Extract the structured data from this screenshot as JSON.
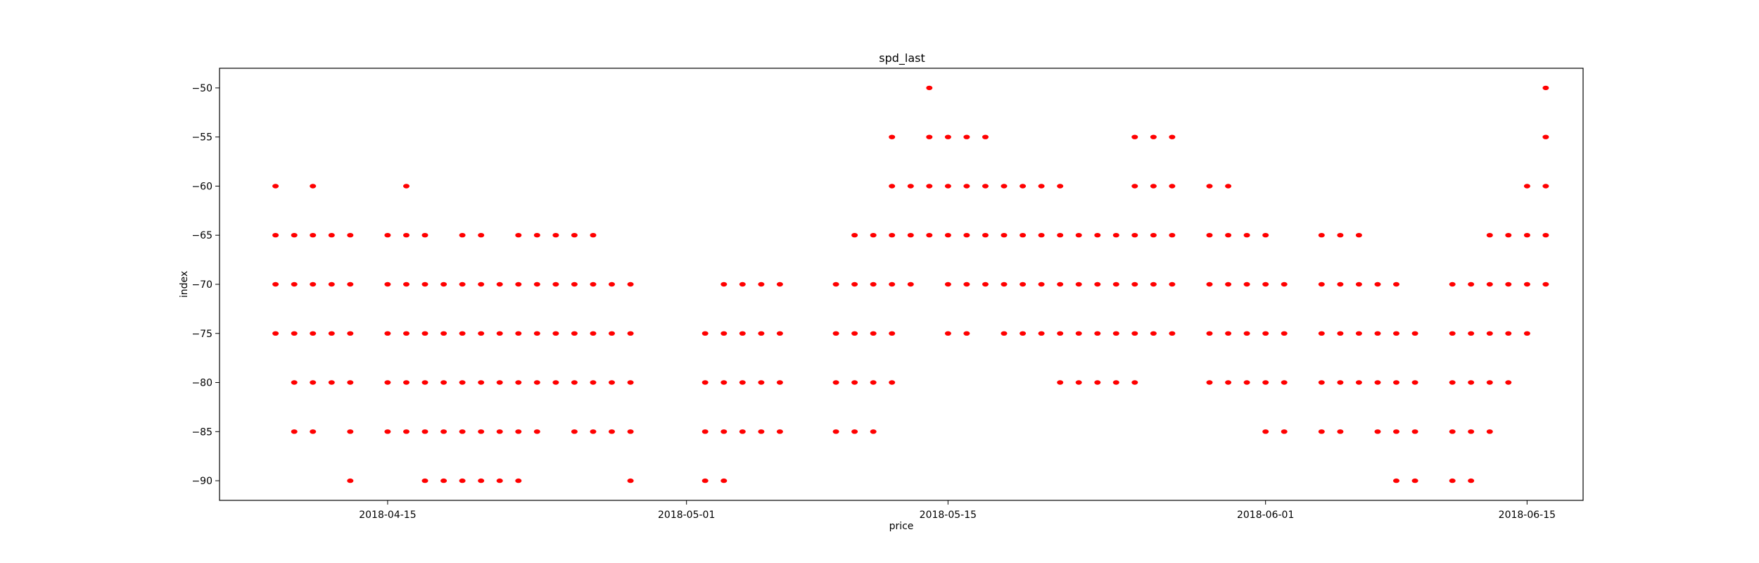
{
  "chart_data": {
    "type": "scatter",
    "title": "spd_last",
    "xlabel": "price",
    "ylabel": "index",
    "x_is_date": true,
    "xlim": [
      "2018-04-06",
      "2018-06-18"
    ],
    "ylim": [
      -92,
      -48
    ],
    "x_ticks": [
      "2018-04-15",
      "2018-05-01",
      "2018-05-15",
      "2018-06-01",
      "2018-06-15"
    ],
    "y_ticks": [
      -50,
      -55,
      -60,
      -65,
      -70,
      -75,
      -80,
      -85,
      -90
    ],
    "grid": false,
    "legend": "none",
    "marker_color": "#ff0000",
    "series": [
      {
        "points": [
          [
            "2018-04-09",
            -60
          ],
          [
            "2018-04-11",
            -60
          ],
          [
            "2018-04-09",
            -65
          ],
          [
            "2018-04-10",
            -65
          ],
          [
            "2018-04-11",
            -65
          ],
          [
            "2018-04-12",
            -65
          ],
          [
            "2018-04-13",
            -65
          ],
          [
            "2018-04-09",
            -70
          ],
          [
            "2018-04-10",
            -70
          ],
          [
            "2018-04-11",
            -70
          ],
          [
            "2018-04-12",
            -70
          ],
          [
            "2018-04-13",
            -70
          ],
          [
            "2018-04-09",
            -75
          ],
          [
            "2018-04-10",
            -75
          ],
          [
            "2018-04-11",
            -75
          ],
          [
            "2018-04-12",
            -75
          ],
          [
            "2018-04-13",
            -75
          ],
          [
            "2018-04-10",
            -80
          ],
          [
            "2018-04-11",
            -80
          ],
          [
            "2018-04-12",
            -80
          ],
          [
            "2018-04-13",
            -80
          ],
          [
            "2018-04-10",
            -85
          ],
          [
            "2018-04-11",
            -85
          ],
          [
            "2018-04-13",
            -85
          ],
          [
            "2018-04-13",
            -90
          ],
          [
            "2018-04-16",
            -60
          ],
          [
            "2018-04-15",
            -65
          ],
          [
            "2018-04-16",
            -65
          ],
          [
            "2018-04-17",
            -65
          ],
          [
            "2018-04-19",
            -65
          ],
          [
            "2018-04-20",
            -65
          ],
          [
            "2018-04-15",
            -70
          ],
          [
            "2018-04-16",
            -70
          ],
          [
            "2018-04-17",
            -70
          ],
          [
            "2018-04-18",
            -70
          ],
          [
            "2018-04-19",
            -70
          ],
          [
            "2018-04-20",
            -70
          ],
          [
            "2018-04-21",
            -70
          ],
          [
            "2018-04-15",
            -75
          ],
          [
            "2018-04-16",
            -75
          ],
          [
            "2018-04-17",
            -75
          ],
          [
            "2018-04-18",
            -75
          ],
          [
            "2018-04-19",
            -75
          ],
          [
            "2018-04-20",
            -75
          ],
          [
            "2018-04-21",
            -75
          ],
          [
            "2018-04-15",
            -80
          ],
          [
            "2018-04-16",
            -80
          ],
          [
            "2018-04-17",
            -80
          ],
          [
            "2018-04-18",
            -80
          ],
          [
            "2018-04-19",
            -80
          ],
          [
            "2018-04-20",
            -80
          ],
          [
            "2018-04-21",
            -80
          ],
          [
            "2018-04-15",
            -85
          ],
          [
            "2018-04-16",
            -85
          ],
          [
            "2018-04-17",
            -85
          ],
          [
            "2018-04-18",
            -85
          ],
          [
            "2018-04-19",
            -85
          ],
          [
            "2018-04-20",
            -85
          ],
          [
            "2018-04-21",
            -85
          ],
          [
            "2018-04-17",
            -90
          ],
          [
            "2018-04-18",
            -90
          ],
          [
            "2018-04-19",
            -90
          ],
          [
            "2018-04-20",
            -90
          ],
          [
            "2018-04-21",
            -90
          ],
          [
            "2018-04-22",
            -65
          ],
          [
            "2018-04-23",
            -65
          ],
          [
            "2018-04-24",
            -65
          ],
          [
            "2018-04-25",
            -65
          ],
          [
            "2018-04-26",
            -65
          ],
          [
            "2018-04-22",
            -70
          ],
          [
            "2018-04-23",
            -70
          ],
          [
            "2018-04-24",
            -70
          ],
          [
            "2018-04-25",
            -70
          ],
          [
            "2018-04-26",
            -70
          ],
          [
            "2018-04-27",
            -70
          ],
          [
            "2018-04-28",
            -70
          ],
          [
            "2018-04-22",
            -75
          ],
          [
            "2018-04-23",
            -75
          ],
          [
            "2018-04-24",
            -75
          ],
          [
            "2018-04-25",
            -75
          ],
          [
            "2018-04-26",
            -75
          ],
          [
            "2018-04-27",
            -75
          ],
          [
            "2018-04-28",
            -75
          ],
          [
            "2018-04-22",
            -80
          ],
          [
            "2018-04-23",
            -80
          ],
          [
            "2018-04-24",
            -80
          ],
          [
            "2018-04-25",
            -80
          ],
          [
            "2018-04-26",
            -80
          ],
          [
            "2018-04-27",
            -80
          ],
          [
            "2018-04-28",
            -80
          ],
          [
            "2018-04-22",
            -85
          ],
          [
            "2018-04-23",
            -85
          ],
          [
            "2018-04-25",
            -85
          ],
          [
            "2018-04-26",
            -85
          ],
          [
            "2018-04-27",
            -85
          ],
          [
            "2018-04-28",
            -85
          ],
          [
            "2018-04-22",
            -90
          ],
          [
            "2018-04-28",
            -90
          ],
          [
            "2018-05-03",
            -70
          ],
          [
            "2018-05-04",
            -70
          ],
          [
            "2018-05-05",
            -70
          ],
          [
            "2018-05-06",
            -70
          ],
          [
            "2018-05-02",
            -75
          ],
          [
            "2018-05-03",
            -75
          ],
          [
            "2018-05-04",
            -75
          ],
          [
            "2018-05-05",
            -75
          ],
          [
            "2018-05-06",
            -75
          ],
          [
            "2018-05-02",
            -80
          ],
          [
            "2018-05-03",
            -80
          ],
          [
            "2018-05-04",
            -80
          ],
          [
            "2018-05-05",
            -80
          ],
          [
            "2018-05-06",
            -80
          ],
          [
            "2018-05-02",
            -85
          ],
          [
            "2018-05-03",
            -85
          ],
          [
            "2018-05-04",
            -85
          ],
          [
            "2018-05-05",
            -85
          ],
          [
            "2018-05-06",
            -85
          ],
          [
            "2018-05-02",
            -90
          ],
          [
            "2018-05-03",
            -90
          ],
          [
            "2018-05-09",
            -70
          ],
          [
            "2018-05-10",
            -70
          ],
          [
            "2018-05-11",
            -70
          ],
          [
            "2018-05-12",
            -70
          ],
          [
            "2018-05-13",
            -70
          ],
          [
            "2018-05-09",
            -75
          ],
          [
            "2018-05-10",
            -75
          ],
          [
            "2018-05-11",
            -75
          ],
          [
            "2018-05-12",
            -75
          ],
          [
            "2018-05-09",
            -80
          ],
          [
            "2018-05-10",
            -80
          ],
          [
            "2018-05-11",
            -80
          ],
          [
            "2018-05-12",
            -80
          ],
          [
            "2018-05-09",
            -85
          ],
          [
            "2018-05-10",
            -85
          ],
          [
            "2018-05-11",
            -85
          ],
          [
            "2018-05-10",
            -65
          ],
          [
            "2018-05-11",
            -65
          ],
          [
            "2018-05-12",
            -65
          ],
          [
            "2018-05-13",
            -65
          ],
          [
            "2018-05-14",
            -65
          ],
          [
            "2018-05-12",
            -60
          ],
          [
            "2018-05-13",
            -60
          ],
          [
            "2018-05-14",
            -60
          ],
          [
            "2018-05-12",
            -55
          ],
          [
            "2018-05-14",
            -55
          ],
          [
            "2018-05-14",
            -50
          ],
          [
            "2018-05-15",
            -55
          ],
          [
            "2018-05-16",
            -55
          ],
          [
            "2018-05-17",
            -55
          ],
          [
            "2018-05-15",
            -60
          ],
          [
            "2018-05-16",
            -60
          ],
          [
            "2018-05-17",
            -60
          ],
          [
            "2018-05-18",
            -60
          ],
          [
            "2018-05-19",
            -60
          ],
          [
            "2018-05-20",
            -60
          ],
          [
            "2018-05-21",
            -60
          ],
          [
            "2018-05-15",
            -65
          ],
          [
            "2018-05-16",
            -65
          ],
          [
            "2018-05-17",
            -65
          ],
          [
            "2018-05-18",
            -65
          ],
          [
            "2018-05-19",
            -65
          ],
          [
            "2018-05-20",
            -65
          ],
          [
            "2018-05-21",
            -65
          ],
          [
            "2018-05-15",
            -70
          ],
          [
            "2018-05-16",
            -70
          ],
          [
            "2018-05-17",
            -70
          ],
          [
            "2018-05-18",
            -70
          ],
          [
            "2018-05-19",
            -70
          ],
          [
            "2018-05-20",
            -70
          ],
          [
            "2018-05-21",
            -70
          ],
          [
            "2018-05-15",
            -75
          ],
          [
            "2018-05-16",
            -75
          ],
          [
            "2018-05-18",
            -75
          ],
          [
            "2018-05-19",
            -75
          ],
          [
            "2018-05-20",
            -75
          ],
          [
            "2018-05-21",
            -75
          ],
          [
            "2018-05-21",
            -80
          ],
          [
            "2018-05-25",
            -55
          ],
          [
            "2018-05-26",
            -55
          ],
          [
            "2018-05-27",
            -55
          ],
          [
            "2018-05-25",
            -60
          ],
          [
            "2018-05-26",
            -60
          ],
          [
            "2018-05-27",
            -60
          ],
          [
            "2018-05-22",
            -65
          ],
          [
            "2018-05-23",
            -65
          ],
          [
            "2018-05-24",
            -65
          ],
          [
            "2018-05-25",
            -65
          ],
          [
            "2018-05-26",
            -65
          ],
          [
            "2018-05-27",
            -65
          ],
          [
            "2018-05-22",
            -70
          ],
          [
            "2018-05-23",
            -70
          ],
          [
            "2018-05-24",
            -70
          ],
          [
            "2018-05-25",
            -70
          ],
          [
            "2018-05-26",
            -70
          ],
          [
            "2018-05-27",
            -70
          ],
          [
            "2018-05-22",
            -75
          ],
          [
            "2018-05-23",
            -75
          ],
          [
            "2018-05-24",
            -75
          ],
          [
            "2018-05-25",
            -75
          ],
          [
            "2018-05-26",
            -75
          ],
          [
            "2018-05-27",
            -75
          ],
          [
            "2018-05-22",
            -80
          ],
          [
            "2018-05-23",
            -80
          ],
          [
            "2018-05-24",
            -80
          ],
          [
            "2018-05-25",
            -80
          ],
          [
            "2018-05-29",
            -60
          ],
          [
            "2018-05-30",
            -60
          ],
          [
            "2018-05-29",
            -65
          ],
          [
            "2018-05-30",
            -65
          ],
          [
            "2018-05-31",
            -65
          ],
          [
            "2018-06-01",
            -65
          ],
          [
            "2018-05-29",
            -70
          ],
          [
            "2018-05-30",
            -70
          ],
          [
            "2018-05-31",
            -70
          ],
          [
            "2018-06-01",
            -70
          ],
          [
            "2018-06-02",
            -70
          ],
          [
            "2018-05-29",
            -75
          ],
          [
            "2018-05-30",
            -75
          ],
          [
            "2018-05-31",
            -75
          ],
          [
            "2018-06-01",
            -75
          ],
          [
            "2018-06-02",
            -75
          ],
          [
            "2018-05-29",
            -80
          ],
          [
            "2018-05-30",
            -80
          ],
          [
            "2018-05-31",
            -80
          ],
          [
            "2018-06-01",
            -80
          ],
          [
            "2018-06-02",
            -80
          ],
          [
            "2018-06-01",
            -85
          ],
          [
            "2018-06-02",
            -85
          ],
          [
            "2018-06-04",
            -65
          ],
          [
            "2018-06-05",
            -65
          ],
          [
            "2018-06-06",
            -65
          ],
          [
            "2018-06-04",
            -70
          ],
          [
            "2018-06-05",
            -70
          ],
          [
            "2018-06-06",
            -70
          ],
          [
            "2018-06-07",
            -70
          ],
          [
            "2018-06-08",
            -70
          ],
          [
            "2018-06-04",
            -75
          ],
          [
            "2018-06-05",
            -75
          ],
          [
            "2018-06-06",
            -75
          ],
          [
            "2018-06-07",
            -75
          ],
          [
            "2018-06-08",
            -75
          ],
          [
            "2018-06-09",
            -75
          ],
          [
            "2018-06-04",
            -80
          ],
          [
            "2018-06-05",
            -80
          ],
          [
            "2018-06-06",
            -80
          ],
          [
            "2018-06-07",
            -80
          ],
          [
            "2018-06-08",
            -80
          ],
          [
            "2018-06-09",
            -80
          ],
          [
            "2018-06-04",
            -85
          ],
          [
            "2018-06-05",
            -85
          ],
          [
            "2018-06-07",
            -85
          ],
          [
            "2018-06-08",
            -85
          ],
          [
            "2018-06-09",
            -85
          ],
          [
            "2018-06-08",
            -90
          ],
          [
            "2018-06-09",
            -90
          ],
          [
            "2018-06-11",
            -70
          ],
          [
            "2018-06-12",
            -70
          ],
          [
            "2018-06-13",
            -70
          ],
          [
            "2018-06-14",
            -70
          ],
          [
            "2018-06-15",
            -70
          ],
          [
            "2018-06-16",
            -70
          ],
          [
            "2018-06-11",
            -75
          ],
          [
            "2018-06-12",
            -75
          ],
          [
            "2018-06-13",
            -75
          ],
          [
            "2018-06-14",
            -75
          ],
          [
            "2018-06-15",
            -75
          ],
          [
            "2018-06-11",
            -80
          ],
          [
            "2018-06-12",
            -80
          ],
          [
            "2018-06-13",
            -80
          ],
          [
            "2018-06-14",
            -80
          ],
          [
            "2018-06-11",
            -85
          ],
          [
            "2018-06-12",
            -85
          ],
          [
            "2018-06-13",
            -85
          ],
          [
            "2018-06-11",
            -90
          ],
          [
            "2018-06-12",
            -90
          ],
          [
            "2018-06-13",
            -65
          ],
          [
            "2018-06-14",
            -65
          ],
          [
            "2018-06-15",
            -65
          ],
          [
            "2018-06-16",
            -65
          ],
          [
            "2018-06-15",
            -60
          ],
          [
            "2018-06-16",
            -60
          ],
          [
            "2018-06-16",
            -55
          ],
          [
            "2018-06-16",
            -50
          ]
        ]
      }
    ]
  }
}
